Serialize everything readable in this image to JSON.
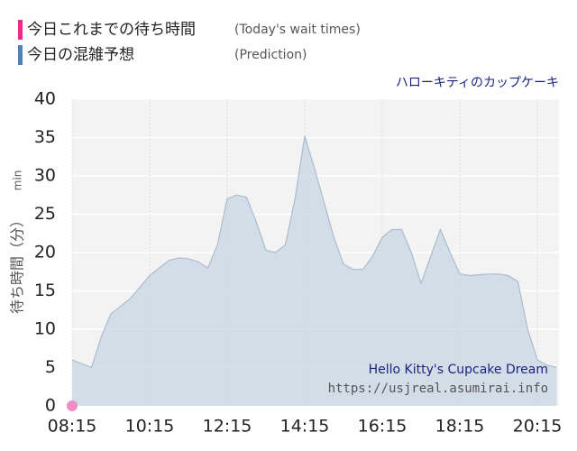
{
  "chart_data": {
    "type": "area",
    "legend": [
      {
        "label": "今日これまでの待ち時間",
        "note": "(Today's wait times)",
        "color": "#f0288c"
      },
      {
        "label": "今日の混雑予想",
        "note": "(Prediction)",
        "color": "#4f81bd"
      }
    ],
    "subtitle": "ハローキティのカップケーキ",
    "ylabel": "待ち時間（分）",
    "ylabel_unit": "min",
    "watermark": [
      "Hello Kitty's Cupcake Dream",
      "https://usjreal.asumirai.info"
    ],
    "categories": [
      "08:15",
      null,
      null,
      null,
      null,
      null,
      null,
      null,
      "10:15",
      null,
      null,
      null,
      null,
      null,
      null,
      null,
      "12:15",
      null,
      null,
      null,
      null,
      null,
      null,
      null,
      "14:15",
      null,
      null,
      null,
      null,
      null,
      null,
      null,
      "16:15",
      null,
      null,
      null,
      null,
      null,
      null,
      null,
      "18:15",
      null,
      null,
      null,
      null,
      null,
      null,
      null,
      "20:15",
      null,
      null
    ],
    "series": [
      {
        "name": "今日の混雑予想",
        "color": "#c8d6e4",
        "values": [
          6,
          5.5,
          5,
          9,
          12,
          13,
          14,
          15.5,
          17,
          18,
          19,
          19.3,
          19.2,
          18.8,
          18,
          21,
          27,
          27.5,
          27.2,
          24,
          20.3,
          20,
          21,
          27,
          35.2,
          31,
          26.5,
          22,
          18.5,
          17.8,
          17.8,
          19.5,
          22,
          23,
          23,
          20,
          16,
          19.5,
          23,
          20,
          17.2,
          17,
          17.1,
          17.2,
          17.2,
          17,
          16.2,
          10,
          6,
          5.3,
          5
        ]
      },
      {
        "name": "今日これまでの待ち時間",
        "color": "#f08cc8",
        "values": [
          0,
          null,
          null,
          null,
          null,
          null,
          null,
          null,
          null,
          null,
          null,
          null,
          null,
          null,
          null,
          null,
          null,
          null,
          null,
          null,
          null,
          null,
          null,
          null,
          null,
          null,
          null,
          null,
          null,
          null,
          null,
          null,
          null,
          null,
          null,
          null,
          null,
          null,
          null,
          null,
          null,
          null,
          null,
          null,
          null,
          null,
          null,
          null,
          null,
          null,
          null
        ]
      }
    ],
    "ylim": [
      0,
      40
    ],
    "yticks": [
      0,
      5,
      10,
      15,
      20,
      25,
      30,
      35,
      40
    ],
    "grid": true
  }
}
